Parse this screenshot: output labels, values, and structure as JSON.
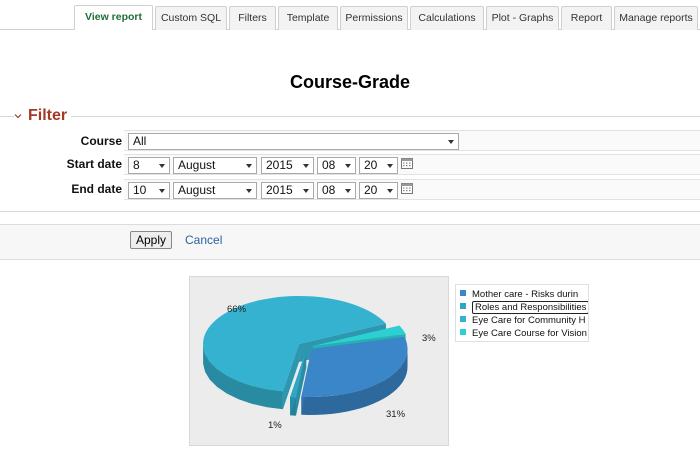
{
  "tabs": [
    {
      "label": "View report",
      "active": true
    },
    {
      "label": "Custom SQL"
    },
    {
      "label": "Filters"
    },
    {
      "label": "Template"
    },
    {
      "label": "Permissions"
    },
    {
      "label": "Calculations"
    },
    {
      "label": "Plot - Graphs"
    },
    {
      "label": "Report"
    },
    {
      "label": "Manage reports"
    }
  ],
  "page_title": "Course-Grade",
  "filter": {
    "legend": "Filter",
    "course_label": "Course",
    "course_value": "All",
    "start_label": "Start date",
    "start": {
      "day": "8",
      "month": "August",
      "year": "2015",
      "hour": "08",
      "minute": "20"
    },
    "end_label": "End date",
    "end": {
      "day": "10",
      "month": "August",
      "year": "2015",
      "hour": "08",
      "minute": "20"
    }
  },
  "actions": {
    "apply": "Apply",
    "cancel": "Cancel"
  },
  "colors": {
    "slice_66": "#35b2cf",
    "slice_31": "#3a86c8",
    "slice_3": "#2ecfd2",
    "slice_1": "#2fa6c2",
    "filter_legend": "#a33a26",
    "link": "#2a64a0"
  },
  "chart_data": {
    "type": "pie",
    "style": "3d-exploded",
    "slices": [
      {
        "label": "Mother care - Risks durin",
        "value": 31,
        "pct_label": "31%",
        "color": "#3a86c8"
      },
      {
        "label": "Roles and Responsibilities",
        "value": 1,
        "pct_label": "1%",
        "color": "#2fa6c2"
      },
      {
        "label": "Eye Care for Community H",
        "value": 66,
        "pct_label": "66%",
        "color": "#35b2cf"
      },
      {
        "label": "Eye Care Course for Vision",
        "value": 3,
        "pct_label": "3%",
        "color": "#2ecfd2"
      }
    ],
    "legend_position": "right"
  }
}
